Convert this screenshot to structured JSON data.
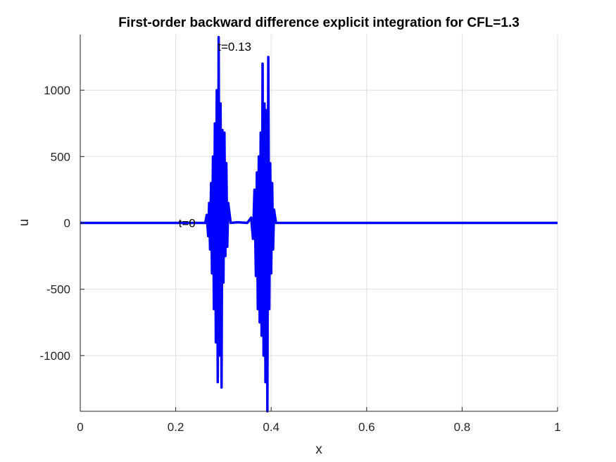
{
  "chart_data": {
    "type": "line",
    "title": "First-order backward difference explicit integration for  CFL=1.3",
    "xlabel": "x",
    "ylabel": "u",
    "xlim": [
      0,
      1
    ],
    "ylim": [
      -1420,
      1420
    ],
    "xticks": [
      0,
      0.2,
      0.4,
      0.6,
      0.8,
      1
    ],
    "xtick_labels": [
      "0",
      "0.2",
      "0.4",
      "0.6",
      "0.8",
      "1"
    ],
    "yticks": [
      -1000,
      -500,
      0,
      500,
      1000
    ],
    "ytick_labels": [
      "-1000",
      "-500",
      "0",
      "500",
      "1000"
    ],
    "grid": true,
    "line_color": "#0000ff",
    "annotations": [
      {
        "text": "t=0",
        "x": 0.206,
        "y": 0
      },
      {
        "text": "t=0.13",
        "x": 0.288,
        "y": 1330
      }
    ],
    "series": [
      {
        "x": [
          0,
          0.2,
          0.262,
          0.265,
          0.268,
          0.27,
          0.272,
          0.274,
          0.276,
          0.278,
          0.28,
          0.282,
          0.284,
          0.286,
          0.288,
          0.29,
          0.292,
          0.294,
          0.296,
          0.298,
          0.3,
          0.302,
          0.304,
          0.306,
          0.308,
          0.31,
          0.315,
          0.33,
          0.35,
          0.358,
          0.362,
          0.365,
          0.368,
          0.37,
          0.372,
          0.374,
          0.376,
          0.378,
          0.38,
          0.382,
          0.384,
          0.386,
          0.388,
          0.39,
          0.392,
          0.394,
          0.396,
          0.398,
          0.4,
          0.402,
          0.404,
          0.406,
          0.41,
          0.42,
          1
        ],
        "y": [
          0,
          0,
          0,
          60,
          -100,
          150,
          -200,
          300,
          -380,
          500,
          -650,
          750,
          -900,
          1000,
          -1200,
          1400,
          -1000,
          900,
          -1240,
          700,
          -450,
          680,
          -250,
          450,
          -180,
          150,
          0,
          5,
          0,
          40,
          -120,
          250,
          -400,
          380,
          -650,
          500,
          -750,
          680,
          -850,
          1200,
          -1000,
          900,
          -1200,
          850,
          -1420,
          1250,
          -650,
          450,
          -380,
          300,
          -200,
          100,
          0,
          0,
          0
        ]
      }
    ]
  }
}
